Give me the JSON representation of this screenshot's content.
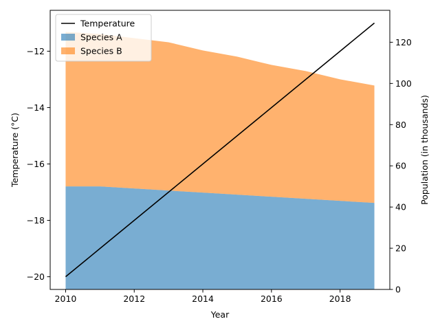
{
  "chart_data": {
    "type": "area",
    "x": [
      2010,
      2011,
      2012,
      2013,
      2014,
      2015,
      2016,
      2017,
      2018,
      2019
    ],
    "series": [
      {
        "name": "Species A",
        "axis": "right",
        "kind": "stacked-area",
        "color": "#1f77b4",
        "values": [
          50,
          50,
          49,
          48,
          47,
          46,
          45,
          44,
          43,
          42
        ]
      },
      {
        "name": "Species B",
        "axis": "right",
        "kind": "stacked-area",
        "color": "#ff7f0e",
        "values": [
          75,
          74,
          73,
          72,
          69,
          67,
          64,
          62,
          59,
          57
        ]
      },
      {
        "name": "Temperature",
        "axis": "left",
        "kind": "line",
        "color": "#000000",
        "values": [
          -20,
          -19,
          -18,
          -17,
          -16,
          -15,
          -14,
          -13,
          -12,
          -11
        ]
      }
    ],
    "xlabel": "Year",
    "ylabel_left": "Temperature (°C)",
    "ylabel_right": "Population (in thousands)",
    "xlim": [
      2009.55,
      2019.45
    ],
    "ylim_left": [
      -20.45,
      -10.55
    ],
    "ylim_right": [
      0,
      135.5
    ],
    "x_ticks": [
      2010,
      2012,
      2014,
      2016,
      2018
    ],
    "y_ticks_left": [
      -20,
      -18,
      -16,
      -14,
      -12
    ],
    "y_ticks_right": [
      0,
      20,
      40,
      60,
      80,
      100,
      120
    ],
    "grid": false,
    "legend_placement": "top-left",
    "legend_order": [
      "Temperature",
      "Species A",
      "Species B"
    ]
  }
}
